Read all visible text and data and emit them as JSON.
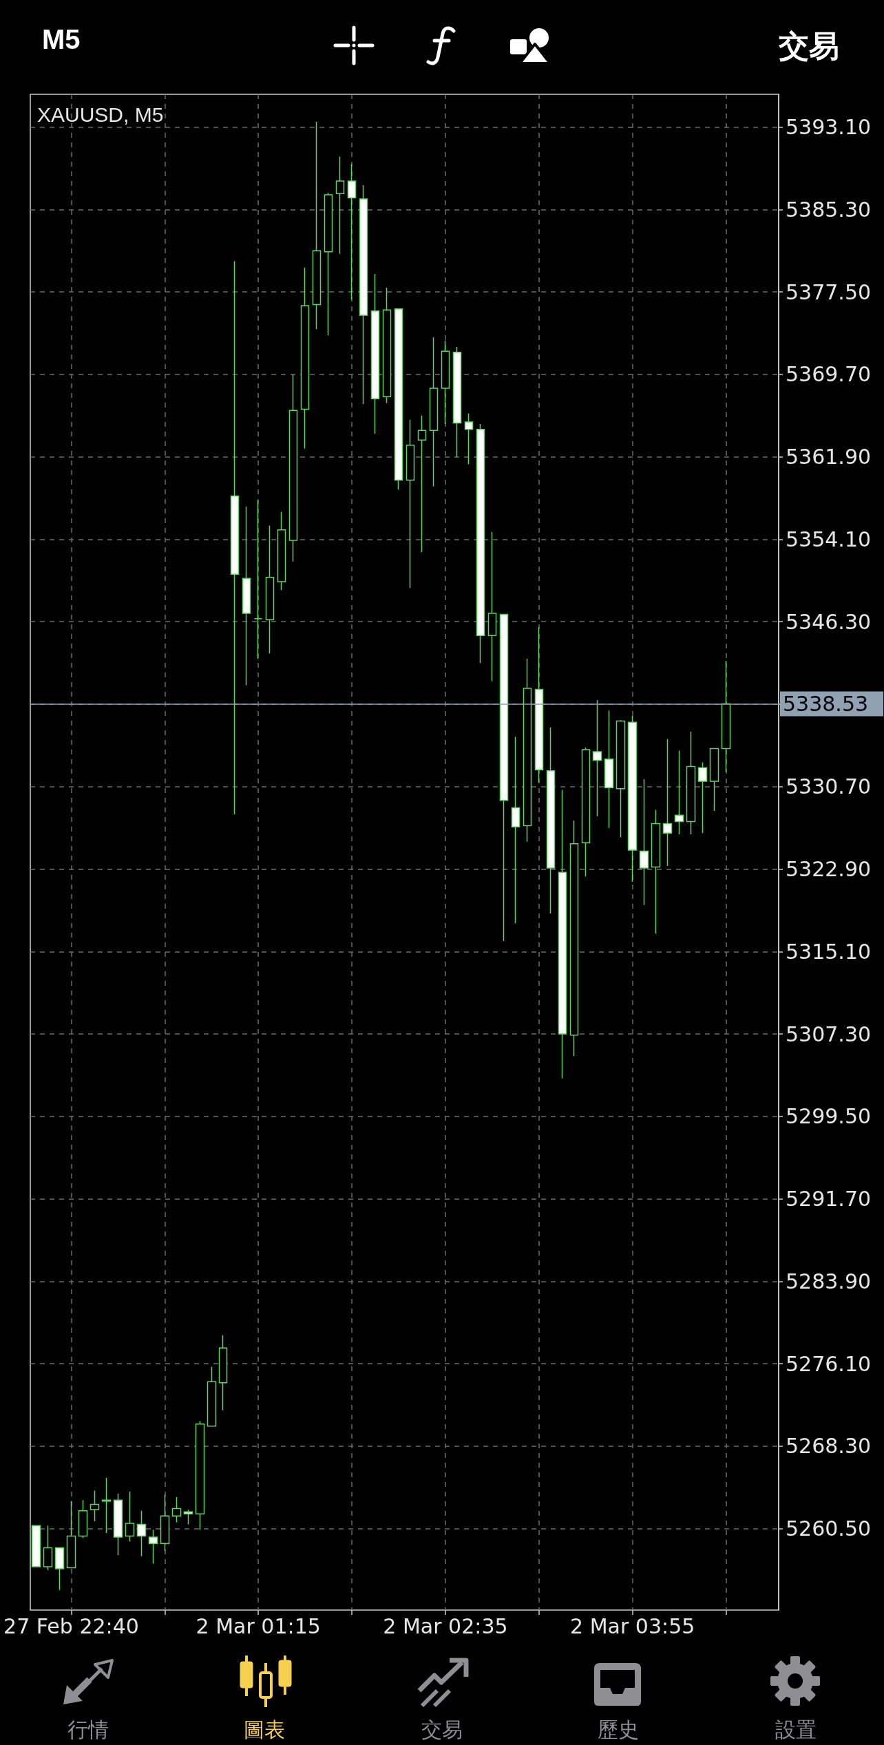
{
  "chart_data": {
    "type": "candlestick",
    "title": "XAUUSD, M5",
    "annotations": [
      "M5",
      "交易",
      "行情",
      "圖表",
      "交易",
      "歷史",
      "設置"
    ],
    "categories": [
      null,
      null,
      null,
      "27 Feb 22:40",
      null,
      null,
      null,
      null,
      null,
      null,
      null,
      null,
      null,
      null,
      null,
      null,
      null,
      null,
      null,
      "2 Mar 01:15",
      null,
      null,
      null,
      null,
      null,
      null,
      null,
      null,
      null,
      null,
      null,
      null,
      null,
      null,
      null,
      "2 Mar 02:35",
      null,
      null,
      null,
      null,
      null,
      null,
      null,
      null,
      null,
      null,
      null,
      null,
      null,
      null,
      null,
      "2 Mar 03:55",
      null,
      null,
      null,
      null,
      null,
      null,
      null,
      null
    ],
    "ohlc": [
      [
        5260.8,
        5260.8,
        5256.9,
        5256.9
      ],
      [
        5256.9,
        5260.8,
        5256.6,
        5258.7
      ],
      [
        5258.7,
        5258.7,
        5254.7,
        5256.7
      ],
      [
        5256.8,
        5263.1,
        5256.8,
        5259.8
      ],
      [
        5259.8,
        5263.2,
        5259.6,
        5262.2
      ],
      [
        5262.3,
        5264.1,
        5261.2,
        5262.8
      ],
      [
        5263.1,
        5265.3,
        5260.1,
        5263.2
      ],
      [
        5263.2,
        5263.8,
        5258.0,
        5259.7
      ],
      [
        5259.8,
        5264.0,
        5259.3,
        5261.0
      ],
      [
        5260.9,
        5262.2,
        5257.9,
        5259.8
      ],
      [
        5259.7,
        5260.4,
        5257.2,
        5259.1
      ],
      [
        5259.1,
        5263.7,
        5258.4,
        5261.7
      ],
      [
        5261.7,
        5263.5,
        5261.1,
        5262.4
      ],
      [
        5262.1,
        5262.3,
        5260.9,
        5261.9
      ],
      [
        5261.9,
        5270.7,
        5260.4,
        5270.4
      ],
      [
        5270.2,
        5275.8,
        5270.2,
        5274.4
      ],
      [
        5274.3,
        5278.8,
        5271.7,
        5277.6
      ],
      [
        5358.2,
        5380.4,
        5328.1,
        5350.8
      ],
      [
        5350.4,
        5357.2,
        5340.3,
        5347.1
      ],
      [
        5346.6,
        5357.8,
        5342.8,
        5346.6
      ],
      [
        5346.5,
        5355.4,
        5343.3,
        5350.5
      ],
      [
        5350.1,
        5356.7,
        5349.3,
        5355.0
      ],
      [
        5354.0,
        5369.7,
        5352.0,
        5366.3
      ],
      [
        5366.4,
        5379.8,
        5362.7,
        5376.2
      ],
      [
        5376.3,
        5393.6,
        5374.0,
        5381.4
      ],
      [
        5381.3,
        5386.9,
        5373.4,
        5386.7
      ],
      [
        5386.8,
        5390.3,
        5381.1,
        5388.0
      ],
      [
        5388.0,
        5389.6,
        5376.8,
        5386.4
      ],
      [
        5386.3,
        5387.6,
        5366.9,
        5375.3
      ],
      [
        5375.7,
        5379.2,
        5364.1,
        5367.4
      ],
      [
        5367.6,
        5377.9,
        5367.0,
        5375.8
      ],
      [
        5375.9,
        5375.9,
        5358.8,
        5359.7
      ],
      [
        5359.7,
        5365.4,
        5349.5,
        5363.0
      ],
      [
        5363.5,
        5365.8,
        5352.9,
        5364.4
      ],
      [
        5364.4,
        5373.2,
        5359.1,
        5368.4
      ],
      [
        5368.4,
        5372.9,
        5365.0,
        5371.9
      ],
      [
        5371.8,
        5372.3,
        5361.9,
        5365.1
      ],
      [
        5365.2,
        5366.0,
        5361.2,
        5364.5
      ],
      [
        5364.5,
        5365.0,
        5342.4,
        5345.0
      ],
      [
        5345.0,
        5354.8,
        5340.7,
        5347.1
      ],
      [
        5347.0,
        5347.0,
        5316.1,
        5329.4
      ],
      [
        5328.7,
        5335.4,
        5317.8,
        5326.9
      ],
      [
        5327.0,
        5342.8,
        5325.5,
        5340.0
      ],
      [
        5339.9,
        5345.8,
        5331.1,
        5332.3
      ],
      [
        5332.2,
        5336.3,
        5318.7,
        5323.0
      ],
      [
        5322.6,
        5330.4,
        5303.1,
        5307.3
      ],
      [
        5307.2,
        5327.5,
        5305.2,
        5325.3
      ],
      [
        5325.4,
        5334.4,
        5322.2,
        5334.2
      ],
      [
        5334.0,
        5338.9,
        5327.9,
        5333.2
      ],
      [
        5333.3,
        5337.9,
        5326.8,
        5330.6
      ],
      [
        5330.5,
        5337.0,
        5325.9,
        5336.9
      ],
      [
        5336.8,
        5337.4,
        5321.7,
        5324.7
      ],
      [
        5324.6,
        5331.4,
        5319.5,
        5323.0
      ],
      [
        5323.1,
        5328.5,
        5316.8,
        5327.2
      ],
      [
        5327.2,
        5335.2,
        5323.2,
        5326.3
      ],
      [
        5328.0,
        5334.1,
        5326.2,
        5327.4
      ],
      [
        5327.4,
        5335.9,
        5326.2,
        5332.6
      ],
      [
        5332.5,
        5333.0,
        5326.3,
        5331.2
      ],
      [
        5331.2,
        5334.3,
        5328.4,
        5334.3
      ],
      [
        5334.3,
        5342.6,
        5332.1,
        5338.53
      ]
    ],
    "color": "#5cd65c",
    "colors": [
      "#ffffff",
      "#000000",
      "#ffffff",
      "#000000",
      "#000000",
      "#000000",
      "#000000",
      "#ffffff",
      "#000000",
      "#ffffff",
      "#ffffff",
      "#000000",
      "#000000",
      "#ffffff",
      "#000000",
      "#000000",
      "#000000",
      "#ffffff",
      "#ffffff",
      "#5cd65c",
      "#000000",
      "#000000",
      "#000000",
      "#000000",
      "#000000",
      "#000000",
      "#000000",
      "#ffffff",
      "#ffffff",
      "#ffffff",
      "#000000",
      "#ffffff",
      "#000000",
      "#000000",
      "#000000",
      "#000000",
      "#ffffff",
      "#ffffff",
      "#ffffff",
      "#000000",
      "#ffffff",
      "#ffffff",
      "#000000",
      "#ffffff",
      "#ffffff",
      "#ffffff",
      "#000000",
      "#000000",
      "#ffffff",
      "#ffffff",
      "#000000",
      "#ffffff",
      "#ffffff",
      "#000000",
      "#ffffff",
      "#ffffff",
      "#000000",
      "#ffffff",
      "#000000",
      "#000000"
    ],
    "ylim": [
      5252.8,
      5396.2
    ],
    "yticks": [
      {
        "value": 5393.1,
        "label": "5393.10"
      },
      {
        "value": 5385.3,
        "label": "5385.30"
      },
      {
        "value": 5377.5,
        "label": "5377.50"
      },
      {
        "value": 5369.7,
        "label": "5369.70"
      },
      {
        "value": 5361.9,
        "label": "5361.90"
      },
      {
        "value": 5354.1,
        "label": "5354.10"
      },
      {
        "value": 5346.3,
        "label": "5346.30"
      },
      {
        "value": 5338.5,
        "label": null
      },
      {
        "value": 5330.7,
        "label": "5330.70"
      },
      {
        "value": 5322.9,
        "label": "5322.90"
      },
      {
        "value": 5315.1,
        "label": "5315.10"
      },
      {
        "value": 5307.3,
        "label": "5307.30"
      },
      {
        "value": 5299.5,
        "label": "5299.50"
      },
      {
        "value": 5291.7,
        "label": "5291.70"
      },
      {
        "value": 5283.9,
        "label": "5283.90"
      },
      {
        "value": 5276.1,
        "label": "5276.10"
      },
      {
        "value": 5268.3,
        "label": "5268.30"
      },
      {
        "value": 5260.5,
        "label": "5260.50"
      }
    ],
    "grid": true,
    "ref_lines": [
      {
        "axis": "y",
        "value": 5338.53,
        "label": "5338.53",
        "color": "#8fa1b3"
      }
    ]
  }
}
